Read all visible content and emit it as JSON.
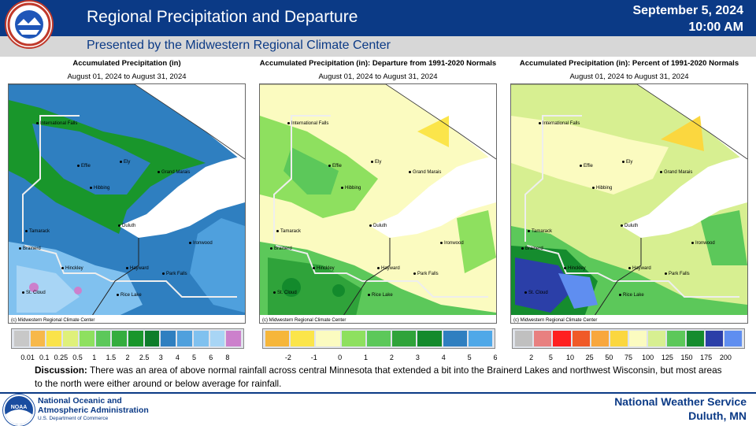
{
  "header": {
    "title": "Regional Precipitation and Departure",
    "date": "September 5, 2024",
    "time": "10:00 AM",
    "subtitle": "Presented by the Midwestern Regional Climate Center",
    "logo_icon": "nws-logo-icon",
    "logo_text": "NATIONAL WEATHER SERVICE"
  },
  "panels": [
    {
      "title": "Accumulated Precipitation (in)",
      "date_range": "August 01, 2024 to August 31, 2024",
      "credit": "(c) Midwestern Regional Climate Center",
      "legend_labels": [
        "0.01",
        "0.1",
        "0.25",
        "0.5",
        "1",
        "1.5",
        "2",
        "2.5",
        "3",
        "4",
        "5",
        "6",
        "8"
      ],
      "legend_colors": [
        "#c8c8c8",
        "#f7b84a",
        "#fae34a",
        "#dff07a",
        "#8ee05f",
        "#5cc85a",
        "#35ad3f",
        "#19962b",
        "#0e7d2b",
        "#2f7fc0",
        "#4fa0dd",
        "#80c1ef",
        "#a8d5f5",
        "#cc80cc"
      ]
    },
    {
      "title": "Accumulated Precipitation (in): Departure from 1991-2020 Normals",
      "date_range": "August 01, 2024 to August 31, 2024",
      "credit": "(c) Midwestern Regional Climate Center",
      "legend_labels": [
        "-2",
        "-1",
        "0",
        "1",
        "2",
        "3",
        "4",
        "5",
        "6"
      ],
      "legend_colors": [
        "#f6b63a",
        "#fbe54a",
        "#fbfbc0",
        "#8ee05f",
        "#5cc85a",
        "#2fa33a",
        "#138a2c",
        "#2f7fc0",
        "#4fa8e8"
      ]
    },
    {
      "title": "Accumulated Precipitation (in): Percent of 1991-2020 Normals",
      "date_range": "August 01, 2024 to August 31, 2024",
      "credit": "(c) Midwestern Regional Climate Center",
      "legend_labels": [
        "2",
        "5",
        "10",
        "25",
        "50",
        "75",
        "100",
        "125",
        "150",
        "175",
        "200"
      ],
      "legend_colors": [
        "#c0c0c0",
        "#e88080",
        "#ff2020",
        "#f05a28",
        "#f8a73e",
        "#fbd73f",
        "#fbfbc0",
        "#d7ef91",
        "#5cc85a",
        "#158c2e",
        "#2b3fa8",
        "#5f8ef0"
      ]
    }
  ],
  "cities": [
    "International Falls",
    "Ely",
    "Grand Marais",
    "Effie",
    "Hibbing",
    "Duluth",
    "Tamarack",
    "Ironwood",
    "Brainerd",
    "Hinckley",
    "Hayward",
    "Park Falls",
    "St. Cloud",
    "Rice Lake"
  ],
  "discussion": {
    "label": "Discussion:",
    "text": " There was an area of above normal rainfall across central Minnesota that extended a bit into the Brainerd Lakes and northwest Wisconsin, but most areas to the north were either around or below average for rainfall."
  },
  "footer": {
    "noaa_name_line1": "National Oceanic and",
    "noaa_name_line2": "Atmospheric Administration",
    "noaa_dept": "U.S. Department of Commerce",
    "noaa_logo_text": "NOAA",
    "nws_line1": "National  Weather  Service",
    "nws_line2": "Duluth,  MN"
  }
}
